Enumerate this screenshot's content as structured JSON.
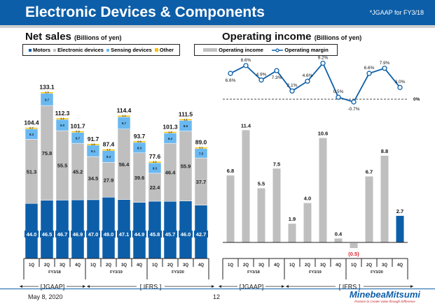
{
  "header": {
    "title": "Electronic Devices & Components",
    "note": "*JGAAP for FY3/18"
  },
  "footer": {
    "date": "May 8, 2020",
    "page": "12",
    "logo": "MinebeaMitsumi",
    "tagline": "Passion to Create Value through Difference"
  },
  "colors": {
    "brand": "#0d5ea8",
    "motors": "#0d5ea8",
    "electronic": "#bfbfbf",
    "sensing": "#6ab8f0",
    "other": "#f5c000",
    "negative": "#e0202a"
  },
  "chart_data": [
    {
      "type": "bar",
      "stacked": true,
      "title": "Net sales",
      "title_unit": "(Billions of yen)",
      "categories": [
        "1Q",
        "2Q",
        "3Q",
        "4Q",
        "1Q",
        "2Q",
        "3Q",
        "4Q",
        "1Q",
        "2Q",
        "3Q",
        "4Q"
      ],
      "groups": [
        "FY3/18",
        "FY3/19",
        "FY3/20"
      ],
      "standards": [
        "[JGAAP]",
        "[ IFRS ]"
      ],
      "series": [
        {
          "name": "Motors",
          "values": [
            44.0,
            46.5,
            46.7,
            46.9,
            47.0,
            49.0,
            47.1,
            44.9,
            45.8,
            45.7,
            46.0,
            42.7
          ]
        },
        {
          "name": "Electronic devices",
          "values": [
            51.3,
            75.8,
            55.5,
            45.2,
            34.5,
            27.9,
            56.4,
            39.6,
            22.4,
            46.4,
            55.9,
            37.7
          ]
        },
        {
          "name": "Sensing devices",
          "values": [
            8.3,
            9.7,
            9.0,
            8.7,
            9.1,
            9.3,
            9.7,
            8.3,
            8.3,
            8.2,
            8.5,
            7.5
          ]
        },
        {
          "name": "Other",
          "values": [
            0.7,
            1.0,
            1.1,
            0.9,
            1.0,
            1.2,
            1.2,
            0.9,
            1.1,
            1.0,
            1.1,
            1.1
          ]
        }
      ],
      "totals": [
        104.4,
        133.1,
        112.3,
        101.7,
        91.7,
        87.4,
        114.4,
        93.7,
        77.6,
        101.3,
        111.5,
        89.0
      ],
      "legend": [
        "Motors",
        "Electronic devices",
        "Sensing devices",
        "Other"
      ],
      "legend_position": "top",
      "ylim": [
        0,
        140
      ]
    },
    {
      "type": "bar+line",
      "title": "Operating income",
      "title_unit": "(Billions of yen)",
      "categories": [
        "1Q",
        "2Q",
        "3Q",
        "4Q",
        "1Q",
        "2Q",
        "3Q",
        "4Q",
        "1Q",
        "2Q",
        "3Q",
        "4Q"
      ],
      "groups": [
        "FY3/18",
        "FY3/19",
        "FY3/20"
      ],
      "standards": [
        "[JGAAP]",
        "[ IFRS ]"
      ],
      "legend": [
        "Operating income",
        "Operating margin"
      ],
      "legend_position": "top",
      "series": [
        {
          "name": "Operating income",
          "values": [
            6.8,
            11.4,
            5.5,
            7.5,
            1.9,
            4.0,
            10.6,
            0.4,
            -0.5,
            6.7,
            8.8,
            2.7
          ],
          "labels": [
            "6.8",
            "11.4",
            "5.5",
            "7.5",
            "1.9",
            "4.0",
            "10.6",
            "0.4",
            "(0.5)",
            "6.7",
            "8.8",
            "2.7"
          ]
        },
        {
          "name": "Operating margin",
          "values": [
            6.6,
            8.6,
            4.9,
            7.3,
            2.1,
            4.6,
            9.2,
            0.5,
            -0.7,
            6.6,
            7.9,
            3.0
          ],
          "labels": [
            "6.6%",
            "8.6%",
            "4.9%",
            "7.3%",
            "2.1%",
            "4.6%",
            "9.2%",
            "0.5%",
            "-0.7%",
            "6.6%",
            "7.9%",
            "3.0%"
          ]
        }
      ],
      "zero_label": "0%",
      "highlight_last": true
    }
  ]
}
